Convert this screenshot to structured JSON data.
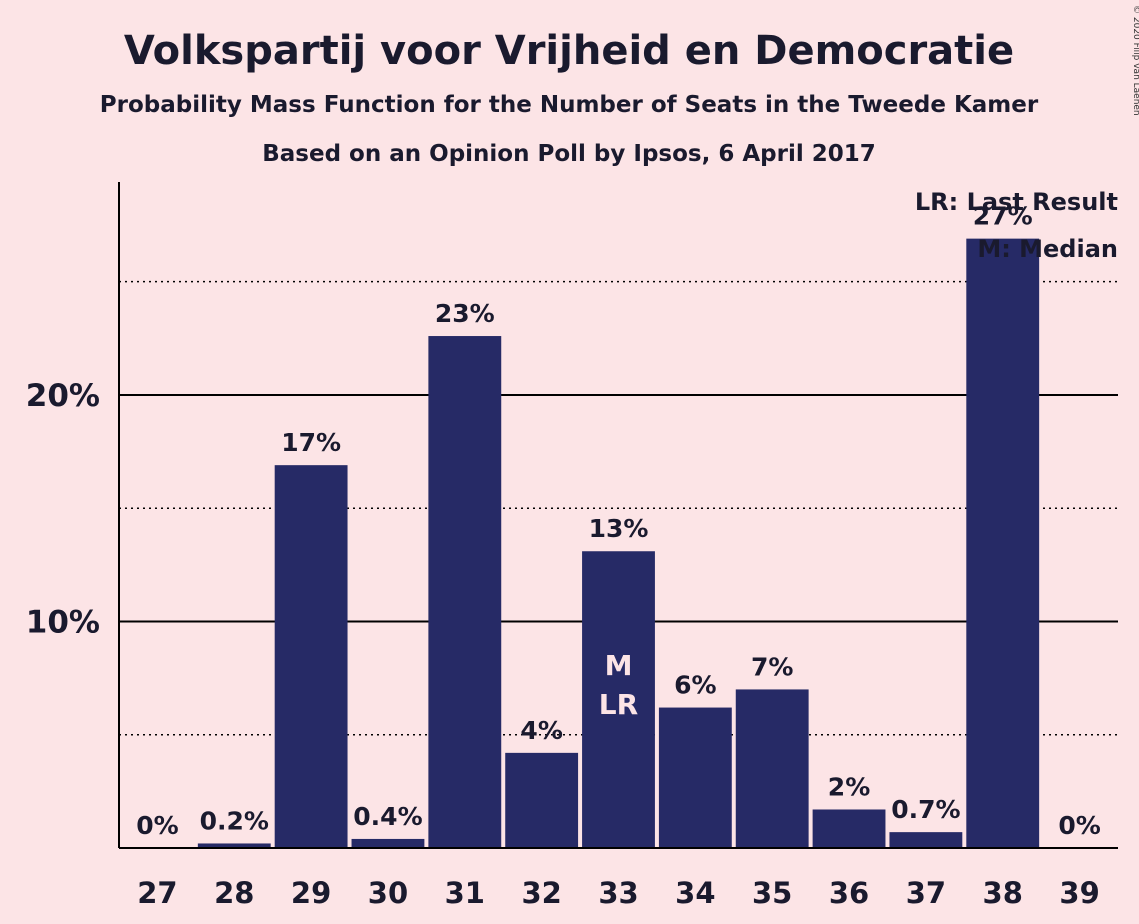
{
  "chart_data": {
    "type": "bar",
    "title": "Volkspartij voor Vrijheid en Democratie",
    "subtitle": "Probability Mass Function for the Number of Seats in the Tweede Kamer",
    "subtitle2": "Based on an Opinion Poll by Ipsos, 6 April 2017",
    "copyright": "© 2020 Filip van Laenen",
    "categories": [
      "27",
      "28",
      "29",
      "30",
      "31",
      "32",
      "33",
      "34",
      "35",
      "36",
      "37",
      "38",
      "39"
    ],
    "values": [
      0,
      0.2,
      16.9,
      0.4,
      22.6,
      4.2,
      13.1,
      6.2,
      7.0,
      1.7,
      0.7,
      26.9,
      0
    ],
    "value_labels": [
      "0%",
      "0.2%",
      "17%",
      "0.4%",
      "23%",
      "4%",
      "13%",
      "6%",
      "7%",
      "2%",
      "0.7%",
      "27%",
      "0%"
    ],
    "bar_annotations": [
      {
        "category": "33",
        "lines": [
          "M",
          "LR"
        ]
      }
    ],
    "y_ticks": [
      {
        "value": 10,
        "label": "10%"
      },
      {
        "value": 20,
        "label": "20%"
      }
    ],
    "minor_gridlines": [
      5,
      15,
      25
    ],
    "ylim": [
      0,
      29.4
    ],
    "xlabel": "",
    "ylabel": "",
    "grid": true,
    "legend_position": "top-right",
    "legend": [
      "LR: Last Result",
      "M: Median"
    ],
    "colors": {
      "background": "#fce4e6",
      "bar": "#262a66",
      "text": "#1a1a2e"
    }
  }
}
